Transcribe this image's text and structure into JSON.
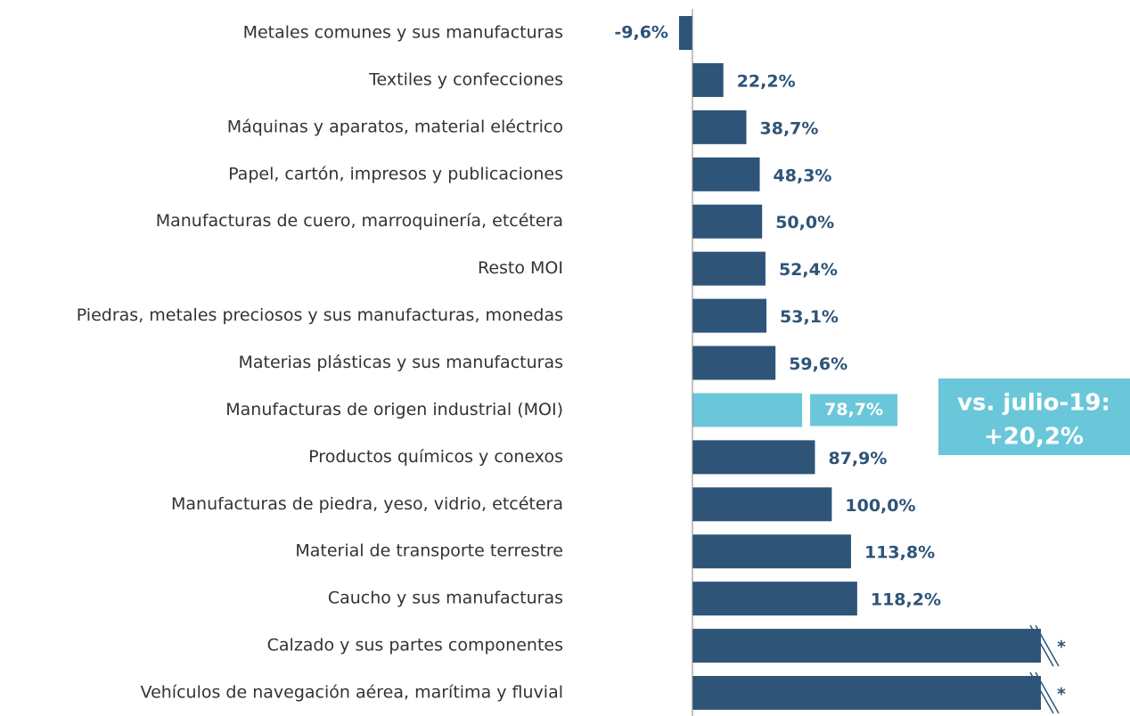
{
  "chart_data": {
    "type": "hbar",
    "categories": [
      "Metales comunes y sus manufacturas",
      "Textiles y confecciones",
      "Máquinas y aparatos, material eléctrico",
      "Papel, cartón, impresos y publicaciones",
      "Manufacturas de cuero, marroquinería, etcétera",
      "Resto MOI",
      "Piedras, metales preciosos y sus manufacturas, monedas",
      "Materias plásticas y sus manufacturas",
      "Manufacturas de origen industrial (MOI)",
      "Productos químicos y conexos",
      "Manufacturas de piedra, yeso, vidrio, etcétera",
      "Material de transporte terrestre",
      "Caucho y sus manufacturas",
      "Calzado y sus partes componentes",
      "Vehículos de navegación aérea, marítima y fluvial"
    ],
    "values": [
      -9.6,
      22.2,
      38.7,
      48.3,
      50.0,
      52.4,
      53.1,
      59.6,
      78.7,
      87.9,
      100.0,
      113.8,
      118.2,
      250,
      250
    ],
    "value_labels": [
      "-9,6%",
      "22,2%",
      "38,7%",
      "48,3%",
      "50,0%",
      "52,4%",
      "53,1%",
      "59,6%",
      "78,7%",
      "87,9%",
      "100,0%",
      "113,8%",
      "118,2%",
      "*",
      "*"
    ],
    "colors": [
      "#2e5478",
      "#2e5478",
      "#2e5478",
      "#2e5478",
      "#2e5478",
      "#2e5478",
      "#2e5478",
      "#2e5478",
      "#6ac7d9",
      "#2e5478",
      "#2e5478",
      "#2e5478",
      "#2e5478",
      "#2e5478",
      "#2e5478"
    ],
    "xlim": [
      -10,
      250
    ],
    "annotation": [
      "vs. julio-19:",
      "+20,2%"
    ],
    "annotation_color": "#6ac7d9"
  }
}
